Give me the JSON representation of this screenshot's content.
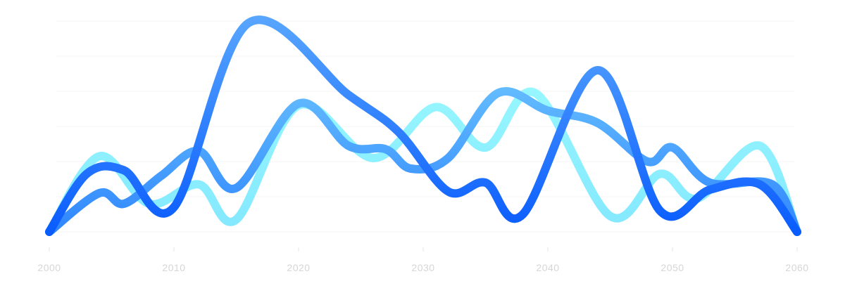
{
  "chart_data": {
    "type": "line",
    "xlim": [
      2000,
      2060
    ],
    "ylim": [
      0,
      6.3
    ],
    "x_ticks": [
      2000,
      2010,
      2020,
      2030,
      2040,
      2050,
      2060
    ],
    "x_tick_labels": [
      "2000",
      "2010",
      "2020",
      "2030",
      "2040",
      "2050",
      "2060"
    ],
    "grid": true,
    "gridlines_y": [
      0,
      1,
      2,
      3,
      4,
      5,
      6
    ],
    "title": "",
    "xlabel": "",
    "ylabel": "",
    "series": [
      {
        "color_start": "#0a5cff",
        "color_end": "#5aa8ff",
        "points": [
          [
            2000,
            0
          ],
          [
            2003,
            1.65
          ],
          [
            2006,
            1.75
          ],
          [
            2010,
            0.7
          ],
          [
            2016,
            5.95
          ],
          [
            2024,
            3.9
          ],
          [
            2028,
            2.85
          ],
          [
            2032,
            1.15
          ],
          [
            2035,
            1.4
          ],
          [
            2038,
            0.5
          ],
          [
            2044,
            4.6
          ],
          [
            2049,
            0.6
          ],
          [
            2053,
            1.2
          ],
          [
            2057,
            1.35
          ],
          [
            2060,
            0
          ]
        ]
      },
      {
        "color_start": "#2f86ff",
        "color_end": "#7fd8ff",
        "points": [
          [
            2000,
            0
          ],
          [
            2004,
            1.1
          ],
          [
            2006,
            0.8
          ],
          [
            2009,
            1.6
          ],
          [
            2012,
            2.3
          ],
          [
            2015,
            1.25
          ],
          [
            2020,
            3.65
          ],
          [
            2024,
            2.45
          ],
          [
            2027,
            2.35
          ],
          [
            2029,
            1.8
          ],
          [
            2032,
            2.1
          ],
          [
            2036,
            3.95
          ],
          [
            2040,
            3.45
          ],
          [
            2044,
            3.1
          ],
          [
            2048,
            2.0
          ],
          [
            2050,
            2.4
          ],
          [
            2053,
            1.4
          ],
          [
            2058,
            1.35
          ],
          [
            2060,
            0
          ]
        ]
      },
      {
        "color_start": "#84e8ff",
        "color_end": "#a0ffff",
        "points": [
          [
            2000,
            0
          ],
          [
            2004,
            2.15
          ],
          [
            2008,
            0.8
          ],
          [
            2012,
            1.35
          ],
          [
            2015,
            0.35
          ],
          [
            2020,
            3.6
          ],
          [
            2026,
            2.1
          ],
          [
            2031,
            3.55
          ],
          [
            2035,
            2.4
          ],
          [
            2039,
            3.95
          ],
          [
            2045,
            0.45
          ],
          [
            2049,
            1.65
          ],
          [
            2052,
            0.95
          ],
          [
            2057,
            2.45
          ],
          [
            2060,
            0
          ]
        ]
      }
    ]
  }
}
